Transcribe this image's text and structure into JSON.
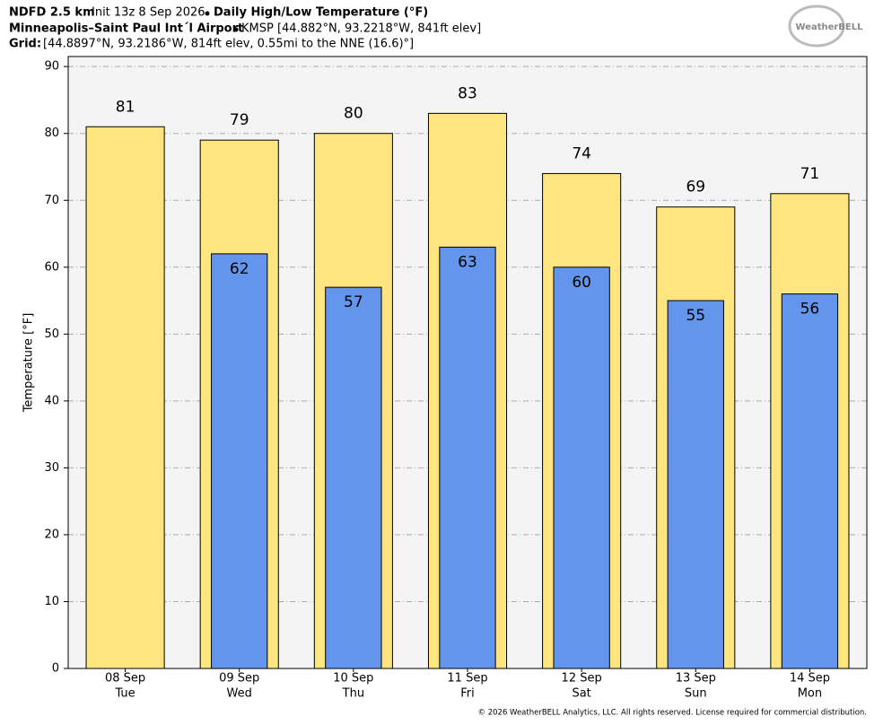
{
  "chart_data": {
    "type": "bar",
    "title": "NDFD 2.5 km",
    "init": "Init 13z 8 Sep 2026",
    "product": "Daily High/Low Temperature (°F)",
    "station": "Minneapolis–Saint Paul Int´l Airport",
    "station_info": "KMSP [44.882°N, 93.2218°W, 841ft elev]",
    "grid_label": "Grid:",
    "grid_info": "[44.8897°N, 93.2186°W, 814ft elev, 0.55mi to the NNE (16.6)°]",
    "logo": "WeatherBELL",
    "copyright": "© 2026 WeatherBELL Analytics, LLC. All rights reserved. License required for commercial distribution.",
    "ylabel": "Temperature [°F]",
    "categories": [
      [
        "08 Sep",
        "Tue"
      ],
      [
        "09 Sep",
        "Wed"
      ],
      [
        "10 Sep",
        "Thu"
      ],
      [
        "11 Sep",
        "Fri"
      ],
      [
        "12 Sep",
        "Sat"
      ],
      [
        "13 Sep",
        "Sun"
      ],
      [
        "14 Sep",
        "Mon"
      ]
    ],
    "series": [
      {
        "color": "#ffe57f",
        "values": [
          81,
          79,
          80,
          83,
          74,
          69,
          71
        ]
      },
      {
        "color": "#6495ed",
        "values": [
          null,
          62,
          57,
          63,
          60,
          55,
          56
        ]
      }
    ],
    "ylim": [
      0,
      91.5
    ],
    "yticks": [
      0,
      10,
      20,
      30,
      40,
      50,
      60,
      70,
      80,
      90
    ],
    "grid": true
  }
}
